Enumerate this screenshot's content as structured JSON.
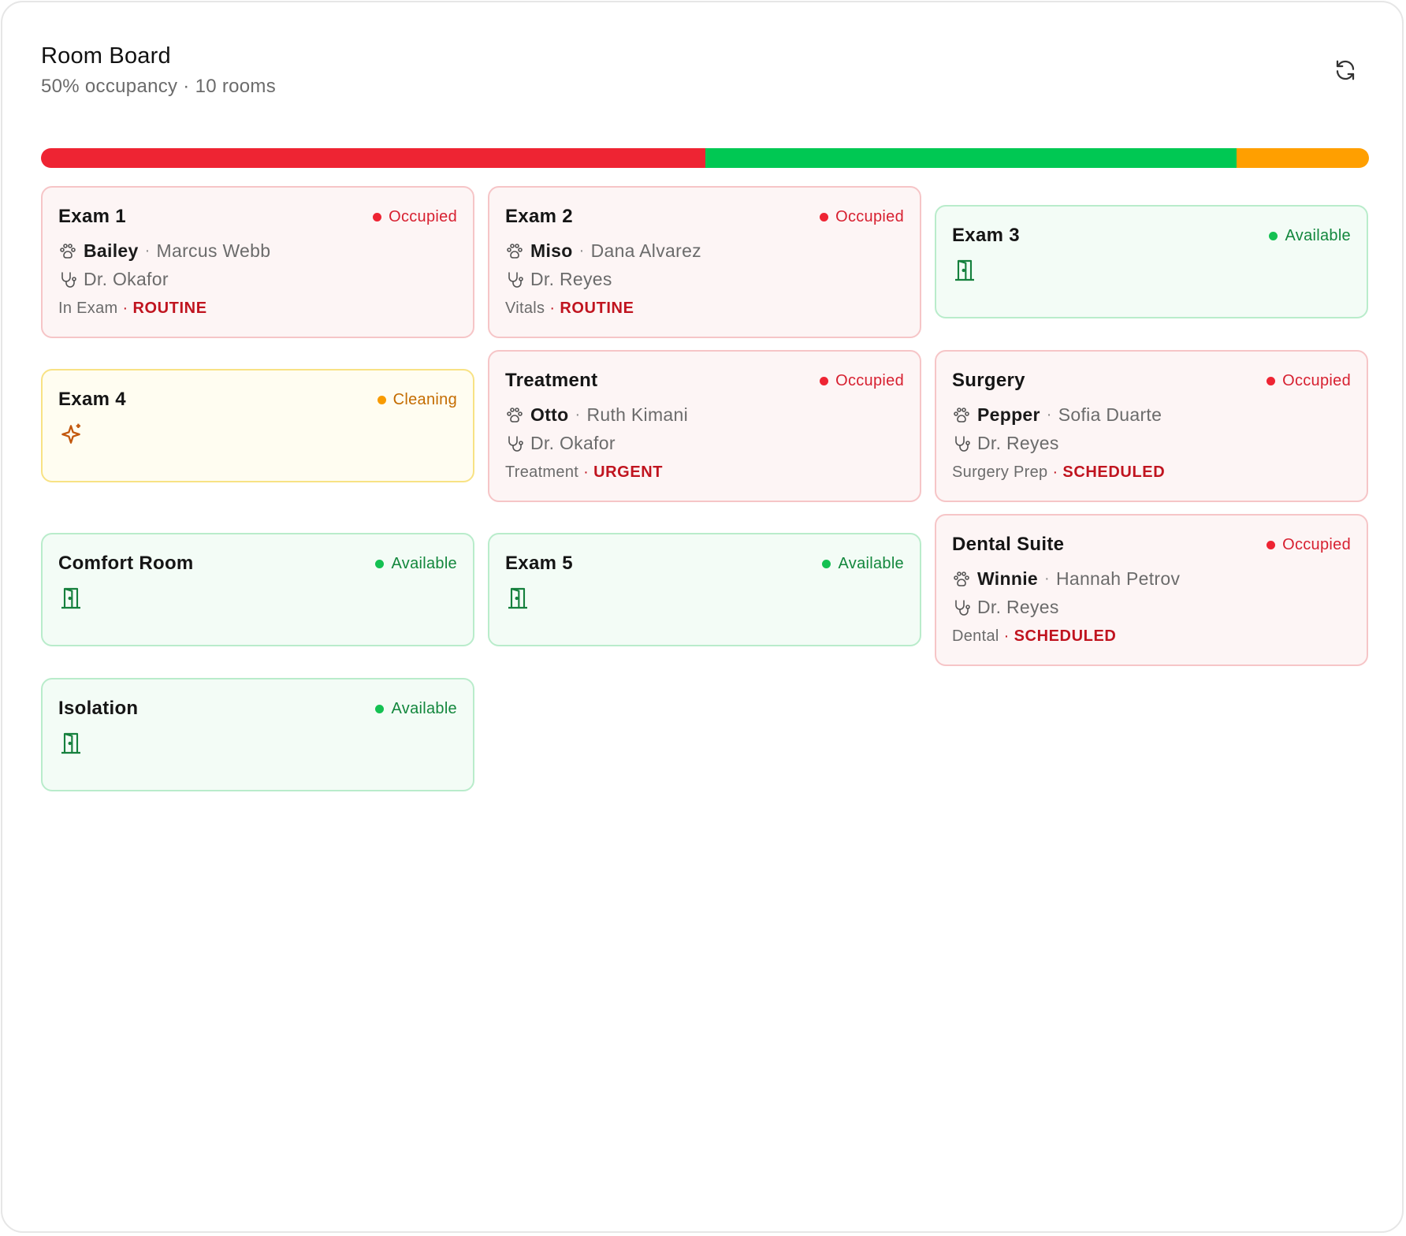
{
  "header": {
    "title": "Room Board",
    "subtitle": "50% occupancy · 10 rooms"
  },
  "colors": {
    "occupied": "#ee2433",
    "available": "#00c853",
    "cleaning": "#ff9f00"
  },
  "occupancy_bar": {
    "occupied_fraction": 0.5,
    "available_fraction": 0.4,
    "cleaning_fraction": 0.1
  },
  "rooms": [
    {
      "name": "Exam 1",
      "status": "Occupied",
      "pet": "Bailey",
      "owner": "Marcus Webb",
      "doctor": "Dr. Okafor",
      "stage": "In Exam",
      "priority": "ROUTINE"
    },
    {
      "name": "Exam 2",
      "status": "Occupied",
      "pet": "Miso",
      "owner": "Dana Alvarez",
      "doctor": "Dr. Reyes",
      "stage": "Vitals",
      "priority": "ROUTINE"
    },
    {
      "name": "Exam 3",
      "status": "Available",
      "icon": "door-icon"
    },
    {
      "name": "Exam 4",
      "status": "Cleaning",
      "icon": "sparkle-icon"
    },
    {
      "name": "Treatment",
      "status": "Occupied",
      "pet": "Otto",
      "owner": "Ruth Kimani",
      "doctor": "Dr. Okafor",
      "stage": "Treatment",
      "priority": "URGENT"
    },
    {
      "name": "Surgery",
      "status": "Occupied",
      "pet": "Pepper",
      "owner": "Sofia Duarte",
      "doctor": "Dr. Reyes",
      "stage": "Surgery Prep",
      "priority": "SCHEDULED"
    },
    {
      "name": "Comfort Room",
      "status": "Available",
      "icon": "door-icon"
    },
    {
      "name": "Exam 5",
      "status": "Available",
      "icon": "door-icon"
    },
    {
      "name": "Dental Suite",
      "status": "Occupied",
      "pet": "Winnie",
      "owner": "Hannah Petrov",
      "doctor": "Dr. Reyes",
      "stage": "Dental",
      "priority": "SCHEDULED"
    },
    {
      "name": "Isolation",
      "status": "Available",
      "icon": "door-icon"
    }
  ]
}
